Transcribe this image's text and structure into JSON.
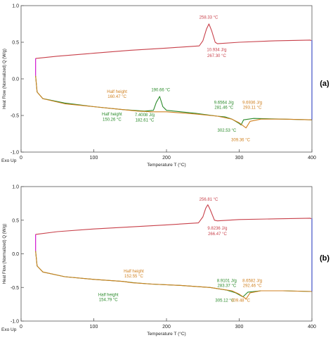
{
  "chart_data": [
    {
      "type": "line",
      "panel_label": "(a)",
      "xlabel": "Temperature T (°C)",
      "ylabel": "Heat Flow (Normalized) Q (W/g)",
      "corner_label": "Exo Up",
      "xlim": [
        0,
        400
      ],
      "ylim": [
        -1.0,
        1.0
      ],
      "x_ticks": [
        {
          "value": 0,
          "label": "0"
        },
        {
          "value": 100,
          "label": "100"
        },
        {
          "value": 200,
          "label": "200"
        },
        {
          "value": 300,
          "label": "300"
        },
        {
          "value": 400,
          "label": "400"
        }
      ],
      "y_ticks": [
        {
          "value": 1.0,
          "label": "1.0"
        },
        {
          "value": 0.5,
          "label": "0.5"
        },
        {
          "value": 0.0,
          "label": "0.0"
        },
        {
          "value": -0.5,
          "label": "-0.5"
        },
        {
          "value": -1.0,
          "label": "-1.0"
        }
      ],
      "grid": false,
      "series": [
        {
          "color": "#c8404a",
          "x": [
            20,
            21,
            50,
            100,
            150,
            200,
            245,
            250,
            255,
            258.33,
            262,
            267,
            270,
            300,
            350,
            398,
            399
          ],
          "y": [
            0.28,
            0.28,
            0.31,
            0.35,
            0.39,
            0.42,
            0.45,
            0.52,
            0.68,
            0.75,
            0.66,
            0.5,
            0.48,
            0.5,
            0.52,
            0.53,
            0.52
          ]
        },
        {
          "color": "#cc00cc",
          "x": [
            20,
            20,
            20
          ],
          "y": [
            0.04,
            0.18,
            0.28
          ]
        },
        {
          "color": "#2a8a2a",
          "x": [
            20,
            22,
            30,
            60,
            100,
            140,
            170,
            182,
            186,
            190.66,
            195,
            200,
            240,
            270,
            281,
            290,
            300,
            302.53,
            306,
            320,
            360,
            400
          ],
          "y": [
            0.04,
            -0.18,
            -0.27,
            -0.33,
            -0.38,
            -0.42,
            -0.44,
            -0.43,
            -0.32,
            -0.24,
            -0.38,
            -0.43,
            -0.47,
            -0.51,
            -0.52,
            -0.55,
            -0.61,
            -0.63,
            -0.56,
            -0.54,
            -0.55,
            -0.56
          ]
        },
        {
          "color": "#d08020",
          "x": [
            20,
            22,
            30,
            60,
            100,
            140,
            160.47,
            180,
            200,
            240,
            270,
            290,
            300,
            309.36,
            315,
            330,
            360,
            400
          ],
          "y": [
            0.04,
            -0.18,
            -0.27,
            -0.34,
            -0.38,
            -0.42,
            -0.44,
            -0.45,
            -0.45,
            -0.48,
            -0.51,
            -0.55,
            -0.6,
            -0.67,
            -0.58,
            -0.55,
            -0.55,
            -0.56
          ]
        },
        {
          "color": "#3040c0",
          "x": [
            400,
            400
          ],
          "y": [
            0.53,
            -0.56
          ]
        }
      ],
      "annotations": [
        {
          "text": "258.33 °C",
          "x": 258,
          "y": 0.82,
          "color": "#c8404a"
        },
        {
          "text": "10.934 J/g",
          "x": 269,
          "y": 0.38,
          "color": "#c8404a"
        },
        {
          "text": "267.30 °C",
          "x": 269,
          "y": 0.3,
          "color": "#c8404a"
        },
        {
          "text": "190.66 °C",
          "x": 192,
          "y": -0.17,
          "color": "#2a8a2a"
        },
        {
          "text": "Half height",
          "x": 132,
          "y": -0.19,
          "color": "#d08020"
        },
        {
          "text": "160.47 °C",
          "x": 132,
          "y": -0.26,
          "color": "#d08020"
        },
        {
          "text": "Half height",
          "x": 125,
          "y": -0.5,
          "color": "#2a8a2a"
        },
        {
          "text": "150.26 °C",
          "x": 125,
          "y": -0.57,
          "color": "#2a8a2a"
        },
        {
          "text": "7.4008 J/g",
          "x": 170,
          "y": -0.51,
          "color": "#2a8a2a"
        },
        {
          "text": "182.61 °C",
          "x": 170,
          "y": -0.58,
          "color": "#2a8a2a"
        },
        {
          "text": "9.6564 J/g",
          "x": 279,
          "y": -0.34,
          "color": "#2a8a2a"
        },
        {
          "text": "281.46 °C",
          "x": 279,
          "y": -0.41,
          "color": "#2a8a2a"
        },
        {
          "text": "9.6936 J/g",
          "x": 318,
          "y": -0.34,
          "color": "#d08020"
        },
        {
          "text": "293.11 °C",
          "x": 318,
          "y": -0.41,
          "color": "#d08020"
        },
        {
          "text": "302.53 °C",
          "x": 283,
          "y": -0.72,
          "color": "#2a8a2a"
        },
        {
          "text": "309.36 °C",
          "x": 302,
          "y": -0.85,
          "color": "#d08020"
        }
      ]
    },
    {
      "type": "line",
      "panel_label": "(b)",
      "xlabel": "Temperature T (°C)",
      "ylabel": "Heat Flow (Normalized) Q (W/g)",
      "corner_label": "Exo Up",
      "xlim": [
        0,
        400
      ],
      "ylim": [
        -1.0,
        1.0
      ],
      "x_ticks": [
        {
          "value": 0,
          "label": "0"
        },
        {
          "value": 100,
          "label": "100"
        },
        {
          "value": 200,
          "label": "200"
        },
        {
          "value": 300,
          "label": "300"
        },
        {
          "value": 400,
          "label": "400"
        }
      ],
      "y_ticks": [
        {
          "value": 1.0,
          "label": "1.0"
        },
        {
          "value": 0.5,
          "label": "0.5"
        },
        {
          "value": 0.0,
          "label": "0.0"
        },
        {
          "value": -0.5,
          "label": "-0.5"
        },
        {
          "value": -1.0,
          "label": "-1.0"
        }
      ],
      "grid": false,
      "series": [
        {
          "color": "#c8404a",
          "x": [
            20,
            21,
            50,
            100,
            150,
            200,
            244,
            250,
            254,
            256.81,
            260,
            266,
            270,
            300,
            350,
            398,
            399
          ],
          "y": [
            0.29,
            0.29,
            0.33,
            0.37,
            0.4,
            0.43,
            0.46,
            0.55,
            0.68,
            0.73,
            0.66,
            0.5,
            0.49,
            0.51,
            0.52,
            0.53,
            0.52
          ]
        },
        {
          "color": "#cc00cc",
          "x": [
            20,
            20,
            20
          ],
          "y": [
            0.04,
            0.18,
            0.29
          ]
        },
        {
          "color": "#2a8a2a",
          "x": [
            20,
            22,
            30,
            60,
            100,
            140,
            154.79,
            180,
            220,
            260,
            283,
            295,
            305.12,
            312,
            330,
            360,
            400
          ],
          "y": [
            0.04,
            -0.18,
            -0.27,
            -0.34,
            -0.38,
            -0.41,
            -0.43,
            -0.45,
            -0.47,
            -0.5,
            -0.54,
            -0.58,
            -0.64,
            -0.57,
            -0.55,
            -0.55,
            -0.56
          ]
        },
        {
          "color": "#d08020",
          "x": [
            20,
            22,
            30,
            60,
            100,
            140,
            152.55,
            180,
            220,
            260,
            290,
            300,
            309.48,
            315,
            330,
            360,
            400
          ],
          "y": [
            0.04,
            -0.18,
            -0.27,
            -0.34,
            -0.38,
            -0.41,
            -0.43,
            -0.45,
            -0.47,
            -0.5,
            -0.55,
            -0.6,
            -0.67,
            -0.58,
            -0.55,
            -0.55,
            -0.56
          ]
        },
        {
          "color": "#3040c0",
          "x": [
            400,
            400
          ],
          "y": [
            0.53,
            -0.56
          ]
        }
      ],
      "annotations": [
        {
          "text": "256.81 °C",
          "x": 258,
          "y": 0.79,
          "color": "#c8404a"
        },
        {
          "text": "9.8236 J/g",
          "x": 270,
          "y": 0.36,
          "color": "#c8404a"
        },
        {
          "text": "266.47 °C",
          "x": 270,
          "y": 0.28,
          "color": "#c8404a"
        },
        {
          "text": "Half height",
          "x": 155,
          "y": -0.28,
          "color": "#d08020"
        },
        {
          "text": "152.55 °C",
          "x": 155,
          "y": -0.35,
          "color": "#d08020"
        },
        {
          "text": "Half height",
          "x": 120,
          "y": -0.63,
          "color": "#2a8a2a"
        },
        {
          "text": "154.79 °C",
          "x": 120,
          "y": -0.7,
          "color": "#2a8a2a"
        },
        {
          "text": "8.9101 J/g",
          "x": 283,
          "y": -0.42,
          "color": "#2a8a2a"
        },
        {
          "text": "283.37 °C",
          "x": 283,
          "y": -0.49,
          "color": "#2a8a2a"
        },
        {
          "text": "8.6582 J/g",
          "x": 318,
          "y": -0.42,
          "color": "#d08020"
        },
        {
          "text": "292.46 °C",
          "x": 318,
          "y": -0.49,
          "color": "#d08020"
        },
        {
          "text": "305.12 °C",
          "x": 280,
          "y": -0.71,
          "color": "#2a8a2a"
        },
        {
          "text": "309.48 °C",
          "x": 302,
          "y": -0.71,
          "color": "#d08020"
        }
      ]
    }
  ]
}
